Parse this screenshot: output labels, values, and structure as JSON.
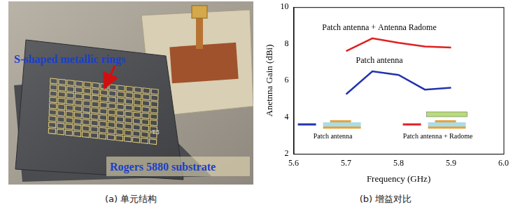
{
  "chart_data": {
    "type": "line",
    "x_label": "Frequency (GHz)",
    "y_label": "Anetnna Gain (dBi)",
    "x": [
      5.7,
      5.75,
      5.8,
      5.85,
      5.9
    ],
    "xlim": [
      5.6,
      6
    ],
    "xticks": [
      5.6,
      5.7,
      5.8,
      5.9,
      {
        "value": 6,
        "label": "6.0"
      }
    ],
    "ylim": [
      2,
      10
    ],
    "yticks": [
      2,
      4,
      6,
      8,
      10
    ],
    "grid": false,
    "legend": "bottom",
    "series": [
      {
        "name": "Patch antenna",
        "color": "#2233aa",
        "values": [
          5.25,
          6.5,
          6.3,
          5.5,
          5.6
        ]
      },
      {
        "name": "Patch antenna + Radome",
        "color": "#e02020",
        "values": [
          7.6,
          8.3,
          8.05,
          7.85,
          7.8
        ]
      }
    ],
    "annotations": [
      {
        "text": "Patch antenna + Antenna Radome",
        "series": 1
      },
      {
        "text": "Patch antenna",
        "series": 0
      }
    ]
  },
  "photo": {
    "labels": [
      "S-shaped metallic rings",
      "Rogers 5880 substrate"
    ],
    "marking": "T3"
  },
  "captions": [
    "(a) 单元结构",
    "(b) 增益对比"
  ]
}
